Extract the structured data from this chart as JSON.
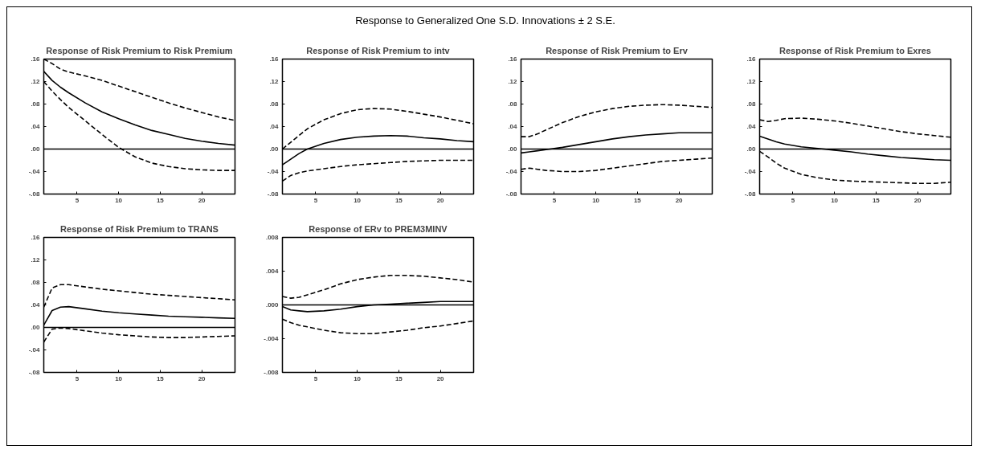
{
  "chart_data": [
    {
      "type": "line",
      "title": "Response of Risk Premium to Risk Premium",
      "annotations": [
        "Response to Generalized One S.D. Innovations ± 2 S.E."
      ],
      "x": [
        1,
        2,
        3,
        4,
        6,
        8,
        10,
        12,
        14,
        16,
        18,
        20,
        22,
        24
      ],
      "xlim": [
        1,
        24
      ],
      "xticks": [
        5,
        10,
        15,
        20
      ],
      "ylim": [
        -0.08,
        0.16
      ],
      "yticks": [
        {
          "value": -0.08,
          "label": "-.08"
        },
        {
          "value": -0.04,
          "label": "-.04"
        },
        {
          "value": 0,
          "label": ".00"
        },
        {
          "value": 0.04,
          "label": ".04"
        },
        {
          "value": 0.08,
          "label": ".08"
        },
        {
          "value": 0.12,
          "label": ".12"
        },
        {
          "value": 0.16,
          "label": ".16"
        }
      ],
      "grid": false,
      "ref_lines": [
        {
          "axis": "y",
          "value": 0,
          "color": "#000000"
        }
      ],
      "series": [
        {
          "color": "#000000",
          "line_style": "solid",
          "values": [
            0.138,
            0.122,
            0.11,
            0.1,
            0.082,
            0.066,
            0.054,
            0.043,
            0.033,
            0.026,
            0.019,
            0.014,
            0.01,
            0.007
          ]
        },
        {
          "color": "#000000",
          "line_style": "dashed",
          "values": [
            0.16,
            0.152,
            0.142,
            0.137,
            0.13,
            0.122,
            0.112,
            0.102,
            0.092,
            0.082,
            0.073,
            0.065,
            0.057,
            0.051
          ]
        },
        {
          "color": "#000000",
          "line_style": "dashed",
          "values": [
            0.12,
            0.103,
            0.088,
            0.074,
            0.05,
            0.026,
            0.003,
            -0.014,
            -0.025,
            -0.031,
            -0.035,
            -0.037,
            -0.038,
            -0.038
          ]
        }
      ]
    },
    {
      "type": "line",
      "title": "Response of Risk Premium to intv",
      "x": [
        1,
        2,
        3,
        4,
        6,
        8,
        10,
        12,
        14,
        16,
        18,
        20,
        22,
        24
      ],
      "xlim": [
        1,
        24
      ],
      "xticks": [
        5,
        10,
        15,
        20
      ],
      "ylim": [
        -0.08,
        0.16
      ],
      "yticks": [
        {
          "value": -0.08,
          "label": "-.08"
        },
        {
          "value": -0.04,
          "label": "-.04"
        },
        {
          "value": 0,
          "label": ".00"
        },
        {
          "value": 0.04,
          "label": ".04"
        },
        {
          "value": 0.08,
          "label": ".08"
        },
        {
          "value": 0.12,
          "label": ".12"
        },
        {
          "value": 0.16,
          "label": ".16"
        }
      ],
      "grid": false,
      "ref_lines": [
        {
          "axis": "y",
          "value": 0,
          "color": "#000000"
        }
      ],
      "series": [
        {
          "color": "#000000",
          "line_style": "solid",
          "values": [
            -0.028,
            -0.018,
            -0.008,
            0.0,
            0.01,
            0.017,
            0.021,
            0.023,
            0.024,
            0.023,
            0.02,
            0.018,
            0.015,
            0.013
          ]
        },
        {
          "color": "#000000",
          "line_style": "dashed",
          "values": [
            0.0,
            0.012,
            0.024,
            0.036,
            0.052,
            0.063,
            0.07,
            0.072,
            0.071,
            0.067,
            0.062,
            0.057,
            0.051,
            0.045
          ]
        },
        {
          "color": "#000000",
          "line_style": "dashed",
          "values": [
            -0.057,
            -0.047,
            -0.042,
            -0.039,
            -0.035,
            -0.031,
            -0.028,
            -0.026,
            -0.024,
            -0.022,
            -0.021,
            -0.02,
            -0.02,
            -0.02
          ]
        }
      ]
    },
    {
      "type": "line",
      "title": "Response of Risk Premium to Erv",
      "x": [
        1,
        2,
        3,
        4,
        6,
        8,
        10,
        12,
        14,
        16,
        18,
        20,
        22,
        24
      ],
      "xlim": [
        1,
        24
      ],
      "xticks": [
        5,
        10,
        15,
        20
      ],
      "ylim": [
        -0.08,
        0.16
      ],
      "yticks": [
        {
          "value": -0.08,
          "label": "-.08"
        },
        {
          "value": -0.04,
          "label": "-.04"
        },
        {
          "value": 0,
          "label": ".00"
        },
        {
          "value": 0.04,
          "label": ".04"
        },
        {
          "value": 0.08,
          "label": ".08"
        },
        {
          "value": 0.12,
          "label": ".12"
        },
        {
          "value": 0.16,
          "label": ".16"
        }
      ],
      "grid": false,
      "ref_lines": [
        {
          "axis": "y",
          "value": 0,
          "color": "#000000"
        }
      ],
      "series": [
        {
          "color": "#000000",
          "line_style": "solid",
          "values": [
            -0.007,
            -0.005,
            -0.003,
            -0.001,
            0.003,
            0.008,
            0.013,
            0.018,
            0.022,
            0.025,
            0.027,
            0.029,
            0.029,
            0.029
          ]
        },
        {
          "color": "#000000",
          "line_style": "dashed",
          "values": [
            0.022,
            0.022,
            0.027,
            0.034,
            0.047,
            0.058,
            0.066,
            0.072,
            0.076,
            0.078,
            0.079,
            0.078,
            0.076,
            0.074
          ]
        },
        {
          "color": "#000000",
          "line_style": "dashed",
          "values": [
            -0.036,
            -0.034,
            -0.036,
            -0.038,
            -0.04,
            -0.04,
            -0.038,
            -0.034,
            -0.03,
            -0.026,
            -0.022,
            -0.02,
            -0.018,
            -0.016
          ]
        }
      ]
    },
    {
      "type": "line",
      "title": "Response of Risk Premium to Exres",
      "x": [
        1,
        2,
        3,
        4,
        6,
        8,
        10,
        12,
        14,
        16,
        18,
        20,
        22,
        24
      ],
      "xlim": [
        1,
        24
      ],
      "xticks": [
        5,
        10,
        15,
        20
      ],
      "ylim": [
        -0.08,
        0.16
      ],
      "yticks": [
        {
          "value": -0.08,
          "label": "-.08"
        },
        {
          "value": -0.04,
          "label": "-.04"
        },
        {
          "value": 0,
          "label": ".00"
        },
        {
          "value": 0.04,
          "label": ".04"
        },
        {
          "value": 0.08,
          "label": ".08"
        },
        {
          "value": 0.12,
          "label": ".12"
        },
        {
          "value": 0.16,
          "label": ".16"
        }
      ],
      "grid": false,
      "ref_lines": [
        {
          "axis": "y",
          "value": 0,
          "color": "#000000"
        }
      ],
      "series": [
        {
          "color": "#000000",
          "line_style": "solid",
          "values": [
            0.023,
            0.018,
            0.013,
            0.009,
            0.004,
            0.001,
            -0.002,
            -0.005,
            -0.009,
            -0.012,
            -0.015,
            -0.017,
            -0.019,
            -0.02
          ]
        },
        {
          "color": "#000000",
          "line_style": "dashed",
          "values": [
            0.052,
            0.049,
            0.051,
            0.054,
            0.055,
            0.053,
            0.05,
            0.046,
            0.041,
            0.036,
            0.031,
            0.027,
            0.024,
            0.021
          ]
        },
        {
          "color": "#000000",
          "line_style": "dashed",
          "values": [
            -0.004,
            -0.014,
            -0.025,
            -0.034,
            -0.045,
            -0.051,
            -0.055,
            -0.057,
            -0.058,
            -0.059,
            -0.06,
            -0.061,
            -0.061,
            -0.059
          ]
        }
      ]
    },
    {
      "type": "line",
      "title": "Response of Risk Premium to TRANS",
      "x": [
        1,
        2,
        3,
        4,
        6,
        8,
        10,
        12,
        14,
        16,
        18,
        20,
        22,
        24
      ],
      "xlim": [
        1,
        24
      ],
      "xticks": [
        5,
        10,
        15,
        20
      ],
      "ylim": [
        -0.08,
        0.16
      ],
      "yticks": [
        {
          "value": -0.08,
          "label": "-.08"
        },
        {
          "value": -0.04,
          "label": "-.04"
        },
        {
          "value": 0,
          "label": ".00"
        },
        {
          "value": 0.04,
          "label": ".04"
        },
        {
          "value": 0.08,
          "label": ".08"
        },
        {
          "value": 0.12,
          "label": ".12"
        },
        {
          "value": 0.16,
          "label": ".16"
        }
      ],
      "grid": false,
      "ref_lines": [
        {
          "axis": "y",
          "value": 0,
          "color": "#000000"
        }
      ],
      "series": [
        {
          "color": "#000000",
          "line_style": "solid",
          "values": [
            0.004,
            0.03,
            0.036,
            0.037,
            0.033,
            0.029,
            0.026,
            0.024,
            0.022,
            0.02,
            0.019,
            0.018,
            0.017,
            0.016
          ]
        },
        {
          "color": "#000000",
          "line_style": "dashed",
          "values": [
            0.036,
            0.07,
            0.076,
            0.076,
            0.072,
            0.068,
            0.065,
            0.062,
            0.059,
            0.057,
            0.055,
            0.053,
            0.051,
            0.049
          ]
        },
        {
          "color": "#000000",
          "line_style": "dashed",
          "values": [
            -0.026,
            -0.003,
            -0.001,
            -0.002,
            -0.006,
            -0.01,
            -0.013,
            -0.015,
            -0.017,
            -0.018,
            -0.018,
            -0.017,
            -0.016,
            -0.015
          ]
        }
      ]
    },
    {
      "type": "line",
      "title": "Response of ERv to PREM3MINV",
      "x": [
        1,
        2,
        3,
        4,
        6,
        8,
        10,
        12,
        14,
        16,
        18,
        20,
        22,
        24
      ],
      "xlim": [
        1,
        24
      ],
      "xticks": [
        5,
        10,
        15,
        20
      ],
      "ylim": [
        -0.008,
        0.008
      ],
      "yticks": [
        {
          "value": -0.008,
          "label": "-.008"
        },
        {
          "value": -0.004,
          "label": "-.004"
        },
        {
          "value": 0,
          "label": ".000"
        },
        {
          "value": 0.004,
          "label": ".004"
        },
        {
          "value": 0.008,
          "label": ".008"
        }
      ],
      "grid": false,
      "ref_lines": [
        {
          "axis": "y",
          "value": 0,
          "color": "#000000"
        }
      ],
      "series": [
        {
          "color": "#000000",
          "line_style": "solid",
          "values": [
            -0.0002,
            -0.0006,
            -0.0007,
            -0.0008,
            -0.0007,
            -0.0005,
            -0.0002,
            0.0,
            0.0001,
            0.0002,
            0.0003,
            0.0004,
            0.0004,
            0.0004
          ]
        },
        {
          "color": "#000000",
          "line_style": "dashed",
          "values": [
            0.001,
            0.0008,
            0.0009,
            0.0012,
            0.0018,
            0.0025,
            0.003,
            0.0033,
            0.0035,
            0.0035,
            0.0034,
            0.0032,
            0.003,
            0.0027
          ]
        },
        {
          "color": "#000000",
          "line_style": "dashed",
          "values": [
            -0.0017,
            -0.0021,
            -0.0024,
            -0.0026,
            -0.003,
            -0.0033,
            -0.0034,
            -0.0034,
            -0.0032,
            -0.003,
            -0.0027,
            -0.0025,
            -0.0022,
            -0.0019
          ]
        }
      ]
    }
  ]
}
